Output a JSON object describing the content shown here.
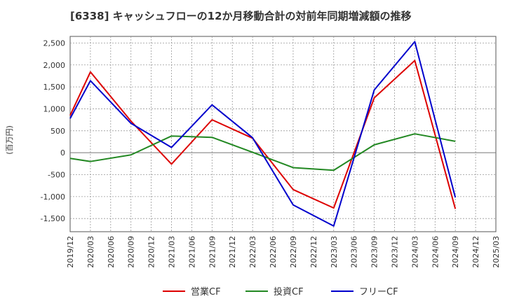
{
  "chart_data": {
    "type": "line",
    "title": "[6338]  キャッシュフローの12か月移動合計の対前年同期増減額の推移",
    "ylabel": "(百万円)",
    "xlabel": "",
    "ylim": [
      -1800,
      2650
    ],
    "yticks": [
      -1500,
      -1000,
      -500,
      0,
      500,
      1000,
      1500,
      2000,
      2500
    ],
    "ytick_labels": [
      "-1,500",
      "-1,000",
      "-500",
      "0",
      "500",
      "1,000",
      "1,500",
      "2,000",
      "2,500"
    ],
    "x": [
      "2019/12",
      "2020/03",
      "2020/06",
      "2020/09",
      "2020/12",
      "2021/03",
      "2021/06",
      "2021/09",
      "2021/12",
      "2022/03",
      "2022/06",
      "2022/09",
      "2022/12",
      "2023/03",
      "2023/06",
      "2023/09",
      "2023/12",
      "2024/03",
      "2024/06",
      "2024/09",
      "2024/12",
      "2025/03"
    ],
    "grid": true,
    "legend_position": "bottom",
    "series": [
      {
        "name": "営業CF",
        "color": "#dd0000",
        "values": [
          850,
          1840,
          null,
          720,
          null,
          -260,
          null,
          750,
          null,
          330,
          null,
          -840,
          null,
          -1260,
          null,
          1250,
          null,
          2100,
          null,
          -1280,
          null,
          null
        ]
      },
      {
        "name": "投資CF",
        "color": "#228822",
        "values": [
          -130,
          -200,
          null,
          -50,
          null,
          380,
          null,
          350,
          null,
          10,
          null,
          -340,
          null,
          -400,
          null,
          180,
          null,
          430,
          null,
          260,
          null,
          null
        ]
      },
      {
        "name": "フリーCF",
        "color": "#0000cc",
        "values": [
          780,
          1640,
          null,
          670,
          null,
          120,
          null,
          1090,
          null,
          340,
          null,
          -1190,
          null,
          -1670,
          null,
          1430,
          null,
          2530,
          null,
          -1020,
          null,
          null
        ]
      }
    ]
  }
}
